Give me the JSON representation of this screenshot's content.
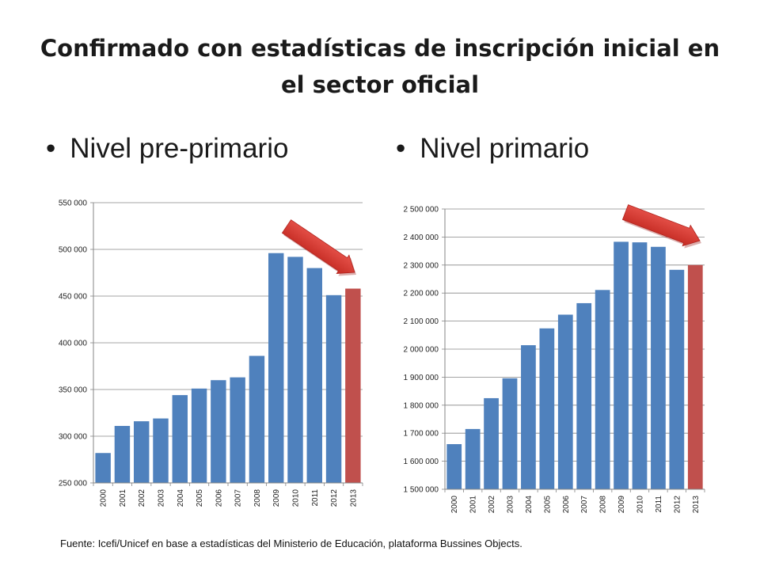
{
  "slide": {
    "title": "Confirmado con estadísticas de inscripción inicial en el sector oficial",
    "bullet_symbol": "•",
    "bullet_left": "Nivel pre-primario",
    "bullet_right": "Nivel primario",
    "source": "Fuente: Icefi/Unicef en base a estadísticas del Ministerio de Educación, plataforma Bussines Objects."
  },
  "colors": {
    "bar": "#4f81bd",
    "highlight_bar": "#c0504d",
    "arrow": "#d8332d",
    "axis": "#868686",
    "grid": "#868686"
  },
  "chart_data": [
    {
      "type": "bar",
      "categories": [
        "2000",
        "2001",
        "2002",
        "2003",
        "2004",
        "2005",
        "2006",
        "2007",
        "2008",
        "2009",
        "2010",
        "2011",
        "2012",
        "2013"
      ],
      "values": [
        282000,
        311000,
        316000,
        319000,
        344000,
        351000,
        360000,
        363000,
        386000,
        496000,
        492000,
        480000,
        451000,
        458000
      ],
      "highlight_index": 13,
      "ylim": [
        250000,
        550000
      ],
      "yticks": [
        250000,
        300000,
        350000,
        400000,
        450000,
        500000,
        550000
      ],
      "ytick_labels": [
        "250 000",
        "300 000",
        "350 000",
        "400 000",
        "450 000",
        "500 000",
        "550 000"
      ],
      "grid": true,
      "legend": "none",
      "annotation": "arrow pointing down to 2013"
    },
    {
      "type": "bar",
      "categories": [
        "2000",
        "2001",
        "2002",
        "2003",
        "2004",
        "2005",
        "2006",
        "2007",
        "2008",
        "2009",
        "2010",
        "2011",
        "2012",
        "2013"
      ],
      "values": [
        1661000,
        1715000,
        1825000,
        1896000,
        2014000,
        2074000,
        2123000,
        2164000,
        2211000,
        2383000,
        2381000,
        2365000,
        2283000,
        2300000
      ],
      "highlight_index": 13,
      "ylim": [
        1500000,
        2500000
      ],
      "yticks": [
        1500000,
        1600000,
        1700000,
        1800000,
        1900000,
        2000000,
        2100000,
        2200000,
        2300000,
        2400000,
        2500000
      ],
      "ytick_labels": [
        "1 500 000",
        "1 600 000",
        "1 700 000",
        "1 800 000",
        "1 900 000",
        "2 000 000",
        "2 100 000",
        "2 200 000",
        "2 300 000",
        "2 400 000",
        "2 500 000"
      ],
      "grid": true,
      "legend": "none",
      "annotation": "arrow pointing down to 2013"
    }
  ]
}
